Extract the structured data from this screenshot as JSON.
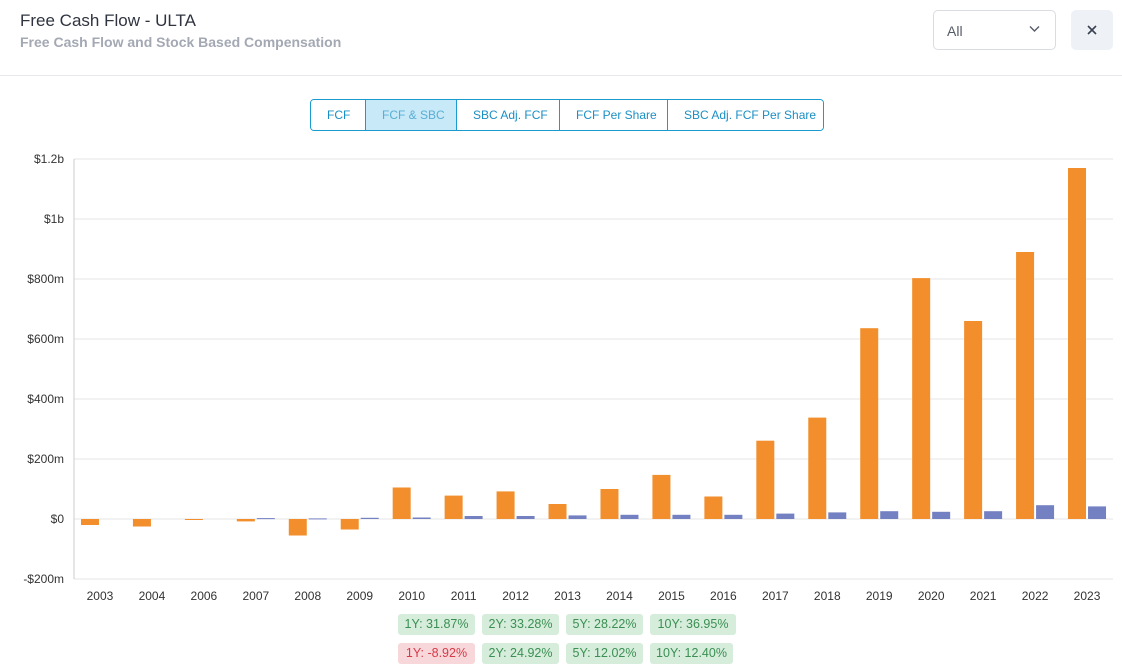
{
  "header": {
    "title": "Free Cash Flow - ULTA",
    "subtitle": "Free Cash Flow and Stock Based Compensation",
    "period_select": {
      "value": "All"
    },
    "close_icon": "close-icon"
  },
  "tabs": [
    {
      "label": "FCF",
      "active": false
    },
    {
      "label": "FCF & SBC",
      "active": true
    },
    {
      "label": "SBC Adj. FCF",
      "active": false
    },
    {
      "label": "FCF Per Share",
      "active": false
    },
    {
      "label": "SBC Adj. FCF Per Share",
      "active": false
    }
  ],
  "colors": {
    "fcf": "#f28e2b",
    "sbc": "#7380c1",
    "accent": "#1a9bcf"
  },
  "chart_data": {
    "type": "bar",
    "title": "",
    "xlabel": "",
    "ylabel": "",
    "categories": [
      "2003",
      "2004",
      "2006",
      "2007",
      "2008",
      "2009",
      "2010",
      "2011",
      "2012",
      "2013",
      "2014",
      "2015",
      "2016",
      "2017",
      "2018",
      "2019",
      "2020",
      "2021",
      "2022",
      "2023"
    ],
    "series": [
      {
        "values": [
          -20,
          -25,
          -3,
          -8,
          -55,
          -35,
          105,
          78,
          92,
          50,
          100,
          147,
          75,
          261,
          338,
          636,
          803,
          660,
          890,
          1170
        ]
      },
      {
        "values": [
          0,
          0,
          0,
          3,
          2,
          4,
          5,
          10,
          10,
          12,
          14,
          14,
          14,
          18,
          22,
          26,
          24,
          26,
          46,
          42
        ]
      }
    ],
    "ylim": [
      -200,
      1200
    ],
    "yticks": [
      -200,
      0,
      200,
      400,
      600,
      800,
      1000,
      1200
    ],
    "ytick_labels": [
      "-$200m",
      "$0",
      "$200m",
      "$400m",
      "$600m",
      "$800m",
      "$1b",
      "$1.2b"
    ],
    "grid": true
  },
  "growth": {
    "fcf": [
      {
        "label": "1Y: 31.87%",
        "positive": true
      },
      {
        "label": "2Y: 33.28%",
        "positive": true
      },
      {
        "label": "5Y: 28.22%",
        "positive": true
      },
      {
        "label": "10Y: 36.95%",
        "positive": true
      }
    ],
    "sbc": [
      {
        "label": "1Y: -8.92%",
        "positive": false
      },
      {
        "label": "2Y: 24.92%",
        "positive": true
      },
      {
        "label": "5Y: 12.02%",
        "positive": true
      },
      {
        "label": "10Y: 12.40%",
        "positive": true
      }
    ]
  }
}
